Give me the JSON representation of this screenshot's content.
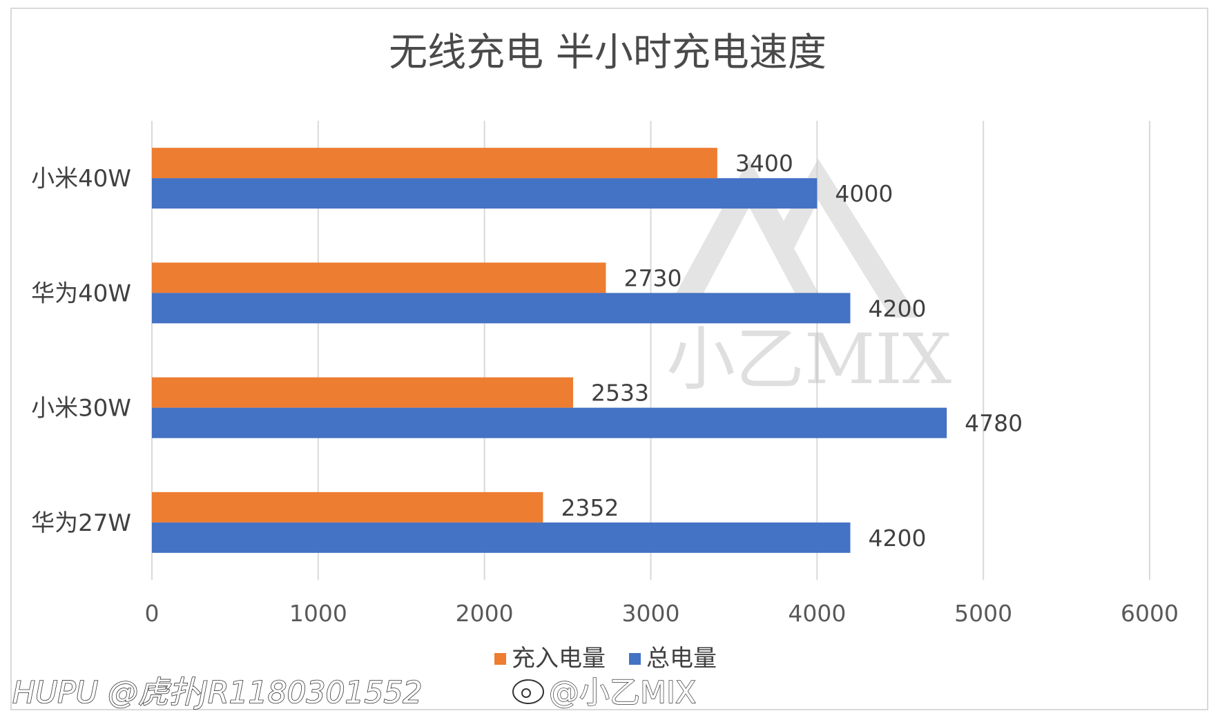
{
  "chart_data": {
    "type": "bar",
    "orientation": "horizontal",
    "title": "无线充电 半小时充电速度",
    "categories": [
      "小米40W",
      "华为40W",
      "小米30W",
      "华为27W"
    ],
    "series": [
      {
        "name": "充入电量",
        "color": "#ED7D31",
        "values": [
          3400,
          2730,
          2533,
          2352
        ]
      },
      {
        "name": "总电量",
        "color": "#4472C4",
        "values": [
          4000,
          4200,
          4780,
          4200
        ]
      }
    ],
    "xlim": [
      0,
      6000
    ],
    "xticks": [
      "0",
      "1000",
      "2000",
      "3000",
      "4000",
      "5000",
      "6000"
    ],
    "xticks_values": [
      0,
      1000,
      2000,
      3000,
      4000,
      5000,
      6000
    ],
    "grid": true,
    "legend": "bottom",
    "gridline_color": "#d9d9d9"
  },
  "watermark": {
    "text": "小乙MIX"
  },
  "footer": {
    "left": "HUPU @虎扑JR1180301552",
    "center": "@小乙MIX"
  }
}
